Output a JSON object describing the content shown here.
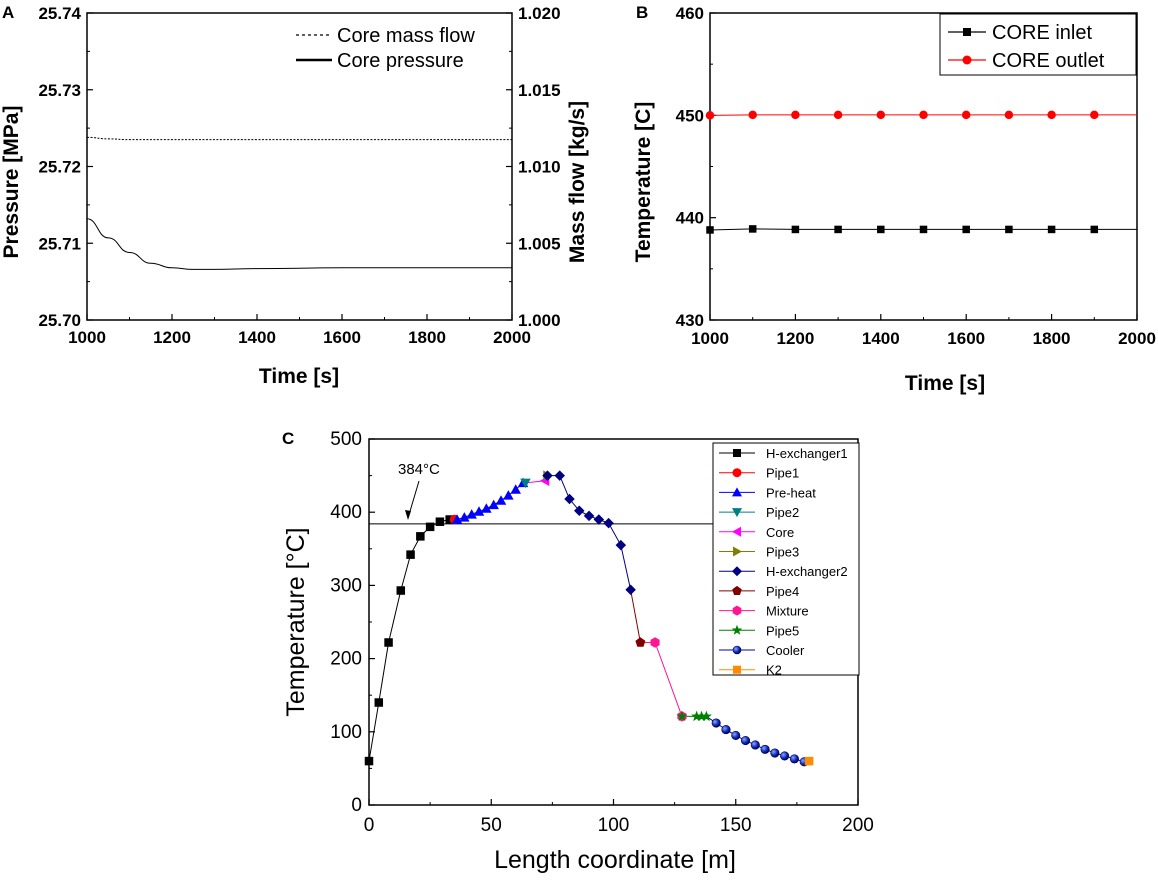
{
  "chart_data": [
    {
      "panel": "A",
      "type": "line",
      "xlabel": "Time [s]",
      "ylabel": "Pressure [MPa]",
      "y2label": "Mass flow [kg/s]",
      "xlim": [
        1000,
        2000
      ],
      "ylim": [
        25.7,
        25.74
      ],
      "y2lim": [
        1.0,
        1.02
      ],
      "xticks": [
        "1000",
        "1200",
        "1400",
        "1600",
        "1800",
        "2000"
      ],
      "yticks": [
        "25.70",
        "25.71",
        "25.72",
        "25.73",
        "25.74"
      ],
      "y2ticks": [
        "1.000",
        "1.005",
        "1.010",
        "1.015",
        "1.020"
      ],
      "legend_position": "top-right",
      "series": [
        {
          "name": "Core mass flow",
          "axis": "right",
          "style": "dashed",
          "x": [
            1000,
            1050,
            1100,
            1200,
            1400,
            1600,
            1800,
            2000
          ],
          "values": [
            1.0119,
            1.0118,
            1.01175,
            1.01175,
            1.01175,
            1.01175,
            1.01175,
            1.01175
          ]
        },
        {
          "name": "Core pressure",
          "axis": "left",
          "style": "solid",
          "x": [
            1000,
            1050,
            1100,
            1150,
            1200,
            1250,
            1300,
            1400,
            1600,
            1800,
            2000
          ],
          "values": [
            25.7132,
            25.7107,
            25.7088,
            25.7074,
            25.7068,
            25.7066,
            25.7066,
            25.7067,
            25.7068,
            25.7068,
            25.7068
          ]
        }
      ]
    },
    {
      "panel": "B",
      "type": "line",
      "xlabel": "Time [s]",
      "ylabel": "Temperature [C]",
      "xlim": [
        1000,
        2000
      ],
      "ylim": [
        430,
        460
      ],
      "xticks": [
        "1000",
        "1200",
        "1400",
        "1600",
        "1800",
        "2000"
      ],
      "yticks": [
        "430",
        "440",
        "450",
        "460"
      ],
      "legend_position": "top-right",
      "series": [
        {
          "name": "CORE inlet",
          "color": "#000000",
          "marker": "square",
          "x": [
            1000,
            1100,
            1200,
            1300,
            1400,
            1500,
            1600,
            1700,
            1800,
            1900,
            2000
          ],
          "values": [
            438.8,
            438.9,
            438.85,
            438.85,
            438.85,
            438.85,
            438.85,
            438.85,
            438.85,
            438.85,
            438.85
          ],
          "marker_x": [
            1000,
            1100,
            1200,
            1300,
            1400,
            1500,
            1600,
            1700,
            1800,
            1900
          ]
        },
        {
          "name": "CORE outlet",
          "color": "#ff0000",
          "marker": "circle",
          "x": [
            1000,
            1100,
            1200,
            1300,
            1400,
            1500,
            1600,
            1700,
            1800,
            1900,
            2000
          ],
          "values": [
            450.0,
            450.05,
            450.05,
            450.05,
            450.05,
            450.05,
            450.05,
            450.05,
            450.05,
            450.05,
            450.05
          ],
          "marker_x": [
            1000,
            1100,
            1200,
            1300,
            1400,
            1500,
            1600,
            1700,
            1800,
            1900
          ]
        }
      ]
    },
    {
      "panel": "C",
      "type": "line",
      "xlabel": "Length coordinate [m]",
      "ylabel": "Temperature [°C]",
      "xlim": [
        0,
        200
      ],
      "ylim": [
        0,
        500
      ],
      "xticks": [
        "0",
        "50",
        "100",
        "150",
        "200"
      ],
      "yticks": [
        "0",
        "100",
        "200",
        "300",
        "400",
        "500"
      ],
      "reference_line": 384,
      "annotation": "384°C",
      "legend_position": "top-right",
      "series": [
        {
          "name": "H-exchanger1",
          "color": "#000000",
          "marker": "square",
          "x": [
            0,
            4,
            8,
            13,
            17,
            21,
            25,
            29,
            33
          ],
          "values": [
            60,
            140,
            222,
            293,
            342,
            367,
            380,
            387,
            390
          ]
        },
        {
          "name": "Pipe1",
          "color": "#ff0000",
          "marker": "circle",
          "x": [
            35
          ],
          "values": [
            390
          ]
        },
        {
          "name": "Pre-heat",
          "color": "#0000ff",
          "marker": "triangle-up",
          "x": [
            36,
            39,
            42,
            45,
            48,
            51,
            54,
            57,
            60,
            63
          ],
          "values": [
            390,
            393,
            397,
            401,
            405,
            410,
            416,
            423,
            431,
            440
          ]
        },
        {
          "name": "Pipe2",
          "color": "#008080",
          "marker": "triangle-down",
          "x": [
            64
          ],
          "values": [
            440
          ]
        },
        {
          "name": "Core",
          "color": "#ff00ff",
          "marker": "triangle-left",
          "x": [
            72
          ],
          "values": [
            443
          ]
        },
        {
          "name": "Pipe3",
          "color": "#808000",
          "marker": "triangle-right",
          "x": [
            73
          ],
          "values": [
            450
          ]
        },
        {
          "name": "H-exchanger2",
          "color": "#000080",
          "marker": "diamond",
          "x": [
            73,
            78,
            82,
            86,
            90,
            94,
            98,
            103,
            107
          ],
          "values": [
            450,
            450,
            418,
            402,
            395,
            390,
            385,
            355,
            294
          ]
        },
        {
          "name": "Pipe4",
          "color": "#800000",
          "marker": "pentagon",
          "x": [
            111
          ],
          "values": [
            222
          ]
        },
        {
          "name": "Mixture",
          "color": "#ff1493",
          "marker": "hexagon",
          "x": [
            117,
            128
          ],
          "values": [
            222,
            121
          ]
        },
        {
          "name": "Pipe5",
          "color": "#008000",
          "marker": "star",
          "x": [
            128,
            134,
            136,
            138
          ],
          "values": [
            121,
            121,
            121,
            121
          ]
        },
        {
          "name": "Cooler",
          "color": "#0000b0",
          "marker": "sphere",
          "x": [
            142,
            146,
            150,
            154,
            158,
            162,
            166,
            170,
            174,
            178
          ],
          "values": [
            112,
            103,
            95,
            88,
            82,
            76,
            71,
            67,
            63,
            59
          ]
        },
        {
          "name": "K2",
          "color": "#ff8c00",
          "marker": "square",
          "x": [
            180
          ],
          "values": [
            60
          ]
        }
      ]
    }
  ],
  "labels": {
    "panel_a": "A",
    "panel_b": "B",
    "panel_c": "C"
  }
}
